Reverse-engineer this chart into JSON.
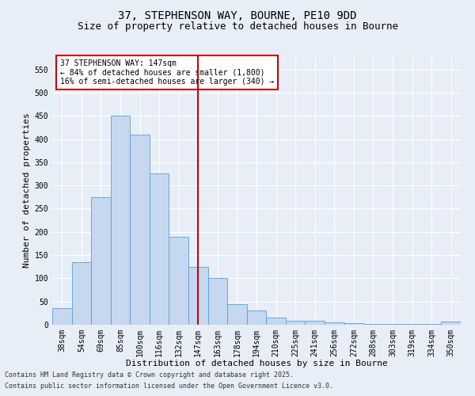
{
  "title1": "37, STEPHENSON WAY, BOURNE, PE10 9DD",
  "title2": "Size of property relative to detached houses in Bourne",
  "xlabel": "Distribution of detached houses by size in Bourne",
  "ylabel": "Number of detached properties",
  "categories": [
    "38sqm",
    "54sqm",
    "69sqm",
    "85sqm",
    "100sqm",
    "116sqm",
    "132sqm",
    "147sqm",
    "163sqm",
    "178sqm",
    "194sqm",
    "210sqm",
    "225sqm",
    "241sqm",
    "256sqm",
    "272sqm",
    "288sqm",
    "303sqm",
    "319sqm",
    "334sqm",
    "350sqm"
  ],
  "values": [
    35,
    135,
    275,
    450,
    410,
    325,
    190,
    125,
    100,
    45,
    30,
    16,
    8,
    8,
    5,
    3,
    2,
    2,
    1,
    1,
    6
  ],
  "bar_color": "#c5d8f0",
  "bar_edge_color": "#5a9ed6",
  "ref_line_x": "147sqm",
  "ref_line_color": "#cc0000",
  "annotation_line1": "37 STEPHENSON WAY: 147sqm",
  "annotation_line2": "← 84% of detached houses are smaller (1,800)",
  "annotation_line3": "16% of semi-detached houses are larger (340) →",
  "annotation_box_color": "#cc0000",
  "ylim": [
    0,
    580
  ],
  "yticks": [
    0,
    50,
    100,
    150,
    200,
    250,
    300,
    350,
    400,
    450,
    500,
    550
  ],
  "bg_color": "#e8eef7",
  "plot_bg_color": "#e8eef7",
  "footer1": "Contains HM Land Registry data © Crown copyright and database right 2025.",
  "footer2": "Contains public sector information licensed under the Open Government Licence v3.0.",
  "title1_fontsize": 10,
  "title2_fontsize": 9,
  "xlabel_fontsize": 8,
  "ylabel_fontsize": 8,
  "tick_fontsize": 7,
  "annotation_fontsize": 7,
  "footer_fontsize": 6
}
